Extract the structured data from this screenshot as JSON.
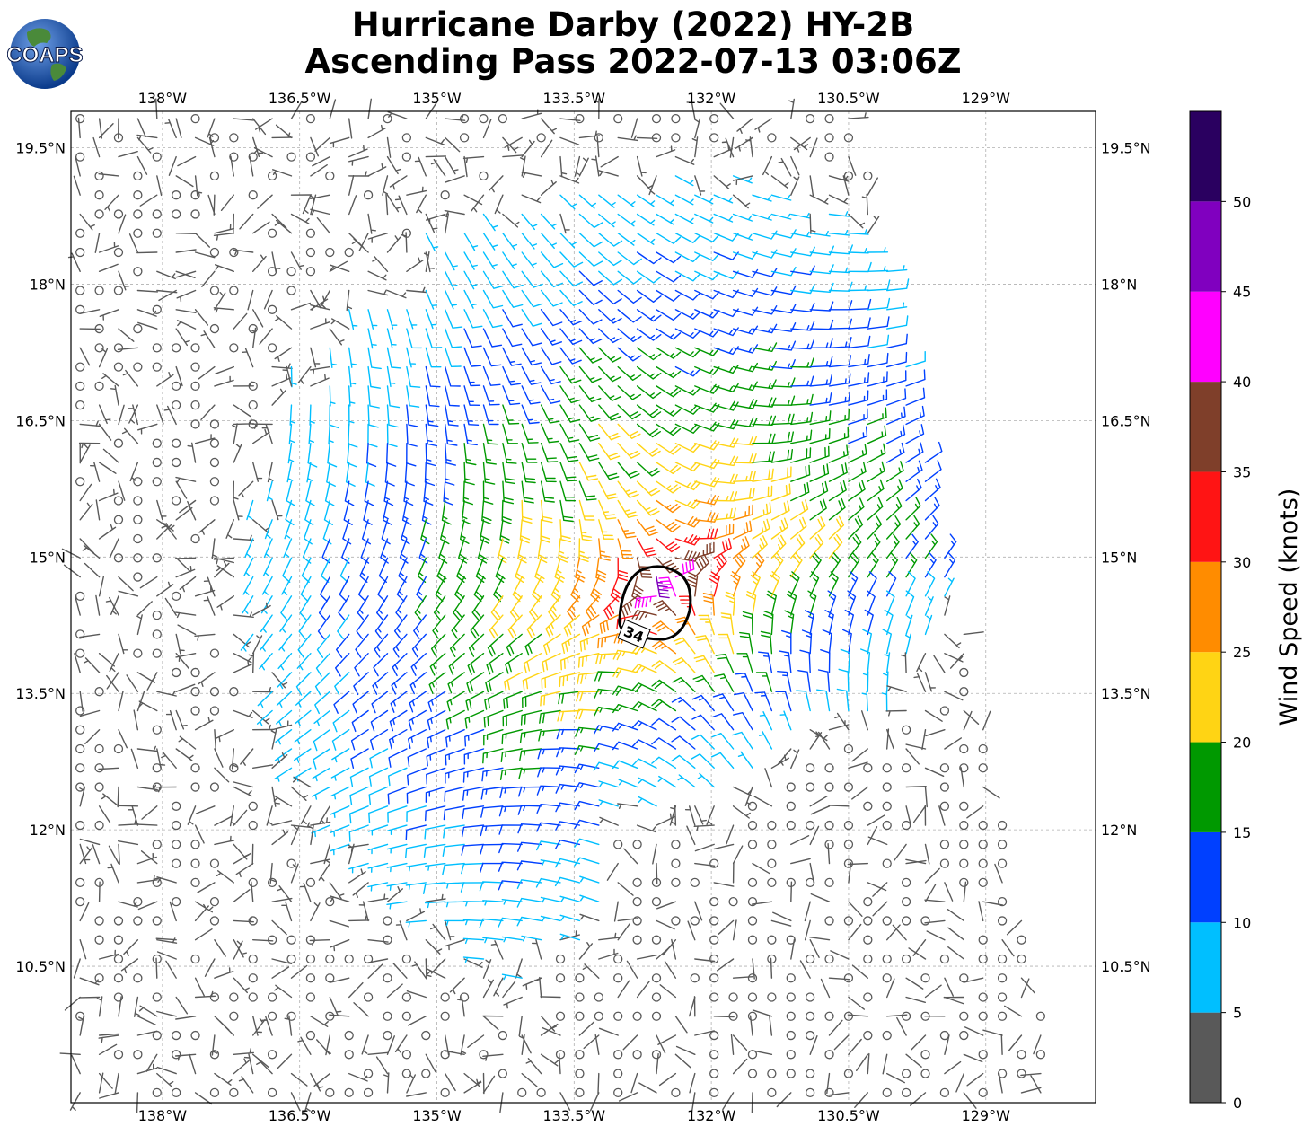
{
  "title": {
    "line1": "Hurricane Darby (2022) HY-2B",
    "line2": "Ascending Pass 2022-07-13 03:06Z"
  },
  "logo": {
    "text": "COAPS",
    "icon": "globe-icon"
  },
  "map": {
    "lon_range": [
      -139.0,
      -127.8
    ],
    "lat_range": [
      9.0,
      19.9
    ],
    "lon_ticks": [
      {
        "value": -138.0,
        "label": "138°W"
      },
      {
        "value": -136.5,
        "label": "136.5°W"
      },
      {
        "value": -135.0,
        "label": "135°W"
      },
      {
        "value": -133.5,
        "label": "133.5°W"
      },
      {
        "value": -132.0,
        "label": "132°W"
      },
      {
        "value": -130.5,
        "label": "130.5°W"
      },
      {
        "value": -129.0,
        "label": "129°W"
      }
    ],
    "lat_ticks": [
      {
        "value": 19.5,
        "label": "19.5°N"
      },
      {
        "value": 18.0,
        "label": "18°N"
      },
      {
        "value": 16.5,
        "label": "16.5°N"
      },
      {
        "value": 15.0,
        "label": "15°N"
      },
      {
        "value": 13.5,
        "label": "13.5°N"
      },
      {
        "value": 12.0,
        "label": "12°N"
      },
      {
        "value": 10.5,
        "label": "10.5°N"
      }
    ],
    "grid": true,
    "storm_center": {
      "lon": -132.5,
      "lat": 14.7
    },
    "contour_label": "34",
    "swath_east_edge": [
      {
        "lat": 19.9,
        "lon": -130.4
      },
      {
        "lat": 9.0,
        "lon": -128.2
      }
    ]
  },
  "colorbar": {
    "label": "Wind Speed (knots)",
    "ticks": [
      "0",
      "5",
      "10",
      "15",
      "20",
      "25",
      "30",
      "35",
      "40",
      "45",
      "50"
    ],
    "bins": [
      {
        "min": 0,
        "max": 5,
        "color": "#595959"
      },
      {
        "min": 5,
        "max": 10,
        "color": "#00bfff"
      },
      {
        "min": 10,
        "max": 15,
        "color": "#0040ff"
      },
      {
        "min": 15,
        "max": 20,
        "color": "#009900"
      },
      {
        "min": 20,
        "max": 25,
        "color": "#ffd414"
      },
      {
        "min": 25,
        "max": 30,
        "color": "#ff8c00"
      },
      {
        "min": 30,
        "max": 35,
        "color": "#ff1414"
      },
      {
        "min": 35,
        "max": 40,
        "color": "#7f3f2a"
      },
      {
        "min": 40,
        "max": 45,
        "color": "#ff00ff"
      },
      {
        "min": 45,
        "max": 50,
        "color": "#8000bf"
      },
      {
        "min": 50,
        "max": 55,
        "color": "#2a0060"
      }
    ]
  }
}
